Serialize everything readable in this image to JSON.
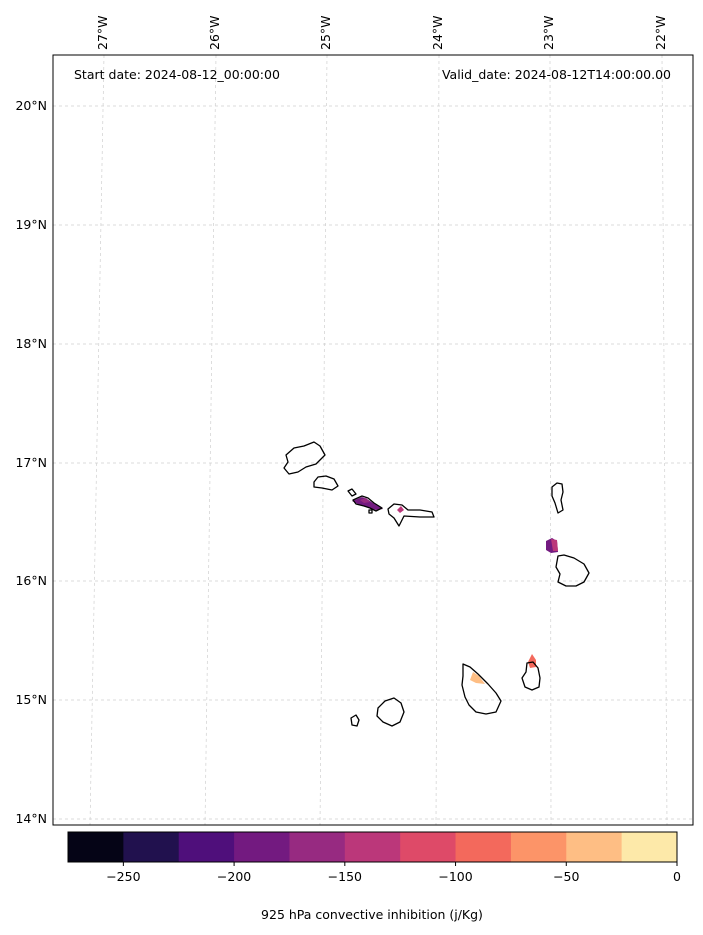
{
  "header": {
    "start_date": "Start date: 2024-08-12_00:00:00",
    "valid_date": "Valid_date: 2024-08-12T14:00:00.00"
  },
  "axes": {
    "lon_labels": [
      "27°W",
      "26°W",
      "25°W",
      "24°W",
      "23°W",
      "22°W"
    ],
    "lat_labels": [
      "20°N",
      "19°N",
      "18°N",
      "17°N",
      "16°N",
      "15°N",
      "14°N"
    ]
  },
  "colorbar": {
    "label": "925 hPa convective inhibition (j/Kg)",
    "ticks": [
      "−250",
      "−200",
      "−150",
      "−100",
      "−50",
      "0"
    ],
    "levels": [
      -275,
      -250,
      -225,
      -200,
      -175,
      -150,
      -125,
      -100,
      -75,
      -50,
      -25,
      0
    ],
    "colors": [
      "#050416",
      "#21114e",
      "#4f0f7b",
      "#731a80",
      "#972a81",
      "#bb377a",
      "#de4a68",
      "#f3695c",
      "#fc9468",
      "#febe84",
      "#fde9a9"
    ]
  },
  "map": {
    "region": "Cabo Verde islands",
    "grid": true,
    "shaded_areas": [
      {
        "island": "São Nicolau",
        "approx_value": -175
      },
      {
        "island": "Sal / Boa Vista",
        "approx_value": -150
      },
      {
        "island": "Maio",
        "approx_value": -75
      },
      {
        "island": "Santiago",
        "approx_value": -25
      }
    ]
  }
}
